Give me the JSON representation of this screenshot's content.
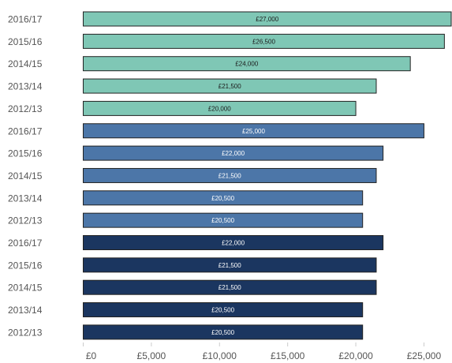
{
  "chart_data": {
    "type": "bar",
    "orientation": "horizontal",
    "x_range": [
      0,
      27000
    ],
    "x_ticks": [
      0,
      5000,
      10000,
      15000,
      20000,
      25000
    ],
    "x_tick_labels": [
      "£0",
      "£5,000",
      "£10,000",
      "£15,000",
      "£20,000",
      "£25,000"
    ],
    "grid": false,
    "colors": {
      "group1": "#7fc7b5",
      "group2": "#4c76a8",
      "group3": "#1b3660",
      "border": "#222222"
    },
    "groups": [
      {
        "color": "#7fc7b5",
        "label_color": "#1a1a1a",
        "bars": [
          {
            "category": "2016/17",
            "value": 27000,
            "label": "£27,000"
          },
          {
            "category": "2015/16",
            "value": 26500,
            "label": "£26,500"
          },
          {
            "category": "2014/15",
            "value": 24000,
            "label": "£24,000"
          },
          {
            "category": "2013/14",
            "value": 21500,
            "label": "£21,500"
          },
          {
            "category": "2012/13",
            "value": 20000,
            "label": "£20,000"
          }
        ]
      },
      {
        "color": "#4c76a8",
        "label_color": "#ffffff",
        "bars": [
          {
            "category": "2016/17",
            "value": 25000,
            "label": "£25,000"
          },
          {
            "category": "2015/16",
            "value": 22000,
            "label": "£22,000"
          },
          {
            "category": "2014/15",
            "value": 21500,
            "label": "£21,500"
          },
          {
            "category": "2013/14",
            "value": 20500,
            "label": "£20,500"
          },
          {
            "category": "2012/13",
            "value": 20500,
            "label": "£20,500"
          }
        ]
      },
      {
        "color": "#1b3660",
        "label_color": "#ffffff",
        "bars": [
          {
            "category": "2016/17",
            "value": 22000,
            "label": "£22,000"
          },
          {
            "category": "2015/16",
            "value": 21500,
            "label": "£21,500"
          },
          {
            "category": "2014/15",
            "value": 21500,
            "label": "£21,500"
          },
          {
            "category": "2013/14",
            "value": 20500,
            "label": "£20,500"
          },
          {
            "category": "2012/13",
            "value": 20500,
            "label": "£20,500"
          }
        ]
      }
    ]
  }
}
